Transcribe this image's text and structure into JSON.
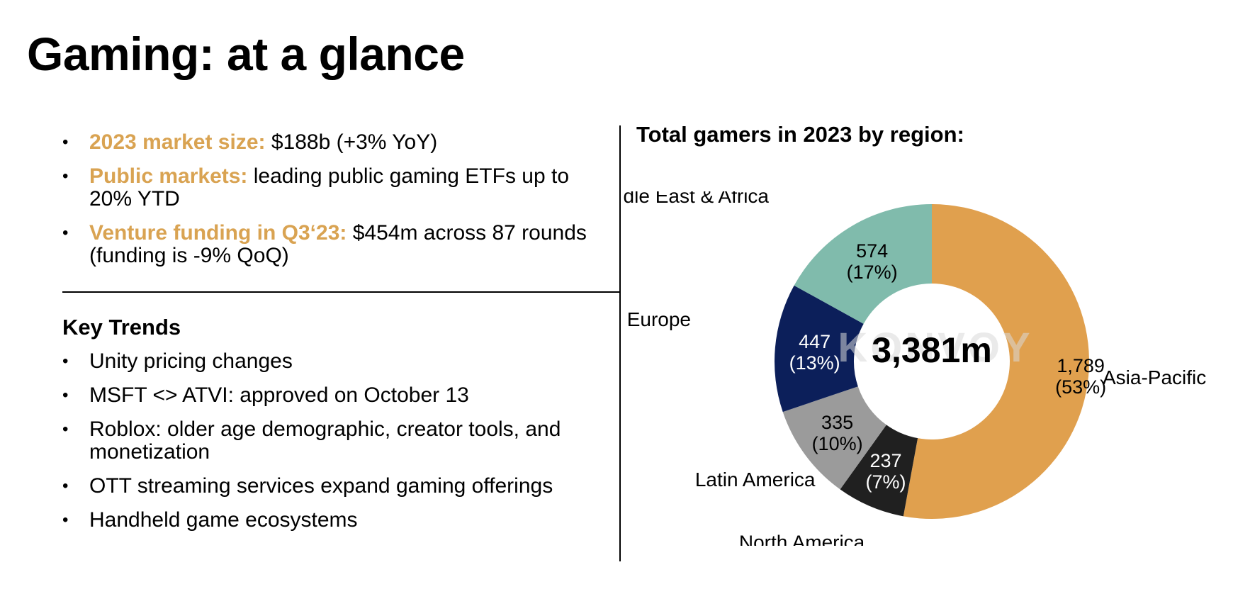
{
  "page": {
    "title": "Gaming: at a glance"
  },
  "highlights": [
    {
      "label": "2023 market size:",
      "text": " $188b (+3% YoY)"
    },
    {
      "label": "Public markets:",
      "text": " leading public gaming ETFs up to 20% YTD"
    },
    {
      "label": "Venture funding in Q3‘23:",
      "text": " $454m across 87 rounds (funding is -9% QoQ)"
    }
  ],
  "trends": {
    "heading": "Key Trends",
    "items": [
      "Unity pricing changes",
      "MSFT <> ATVI: approved on October 13",
      "Roblox: older age demographic, creator tools, and monetization",
      "OTT streaming services expand gaming offerings",
      "Handheld game ecosystems"
    ]
  },
  "colors": {
    "accent": "#d9a352"
  },
  "chart_data": {
    "type": "pie",
    "title": "Total gamers in 2023 by region:",
    "center_label": "3,381m",
    "watermark": "KONVOY",
    "unit": "m",
    "categories": [
      "Asia-Pacific",
      "North America",
      "Latin America",
      "Europe",
      "Middle East & Africa"
    ],
    "values": [
      1789,
      237,
      335,
      447,
      574
    ],
    "value_labels": [
      "1,789",
      "237",
      "335",
      "447",
      "574"
    ],
    "percent_labels": [
      "(53%)",
      "(7%)",
      "(10%)",
      "(13%)",
      "(17%)"
    ],
    "colors": [
      "#e0a04e",
      "#202020",
      "#9b9b9b",
      "#0c1f5a",
      "#80bbac"
    ],
    "label_colors": [
      "#000000",
      "#ffffff",
      "#000000",
      "#ffffff",
      "#000000"
    ]
  }
}
